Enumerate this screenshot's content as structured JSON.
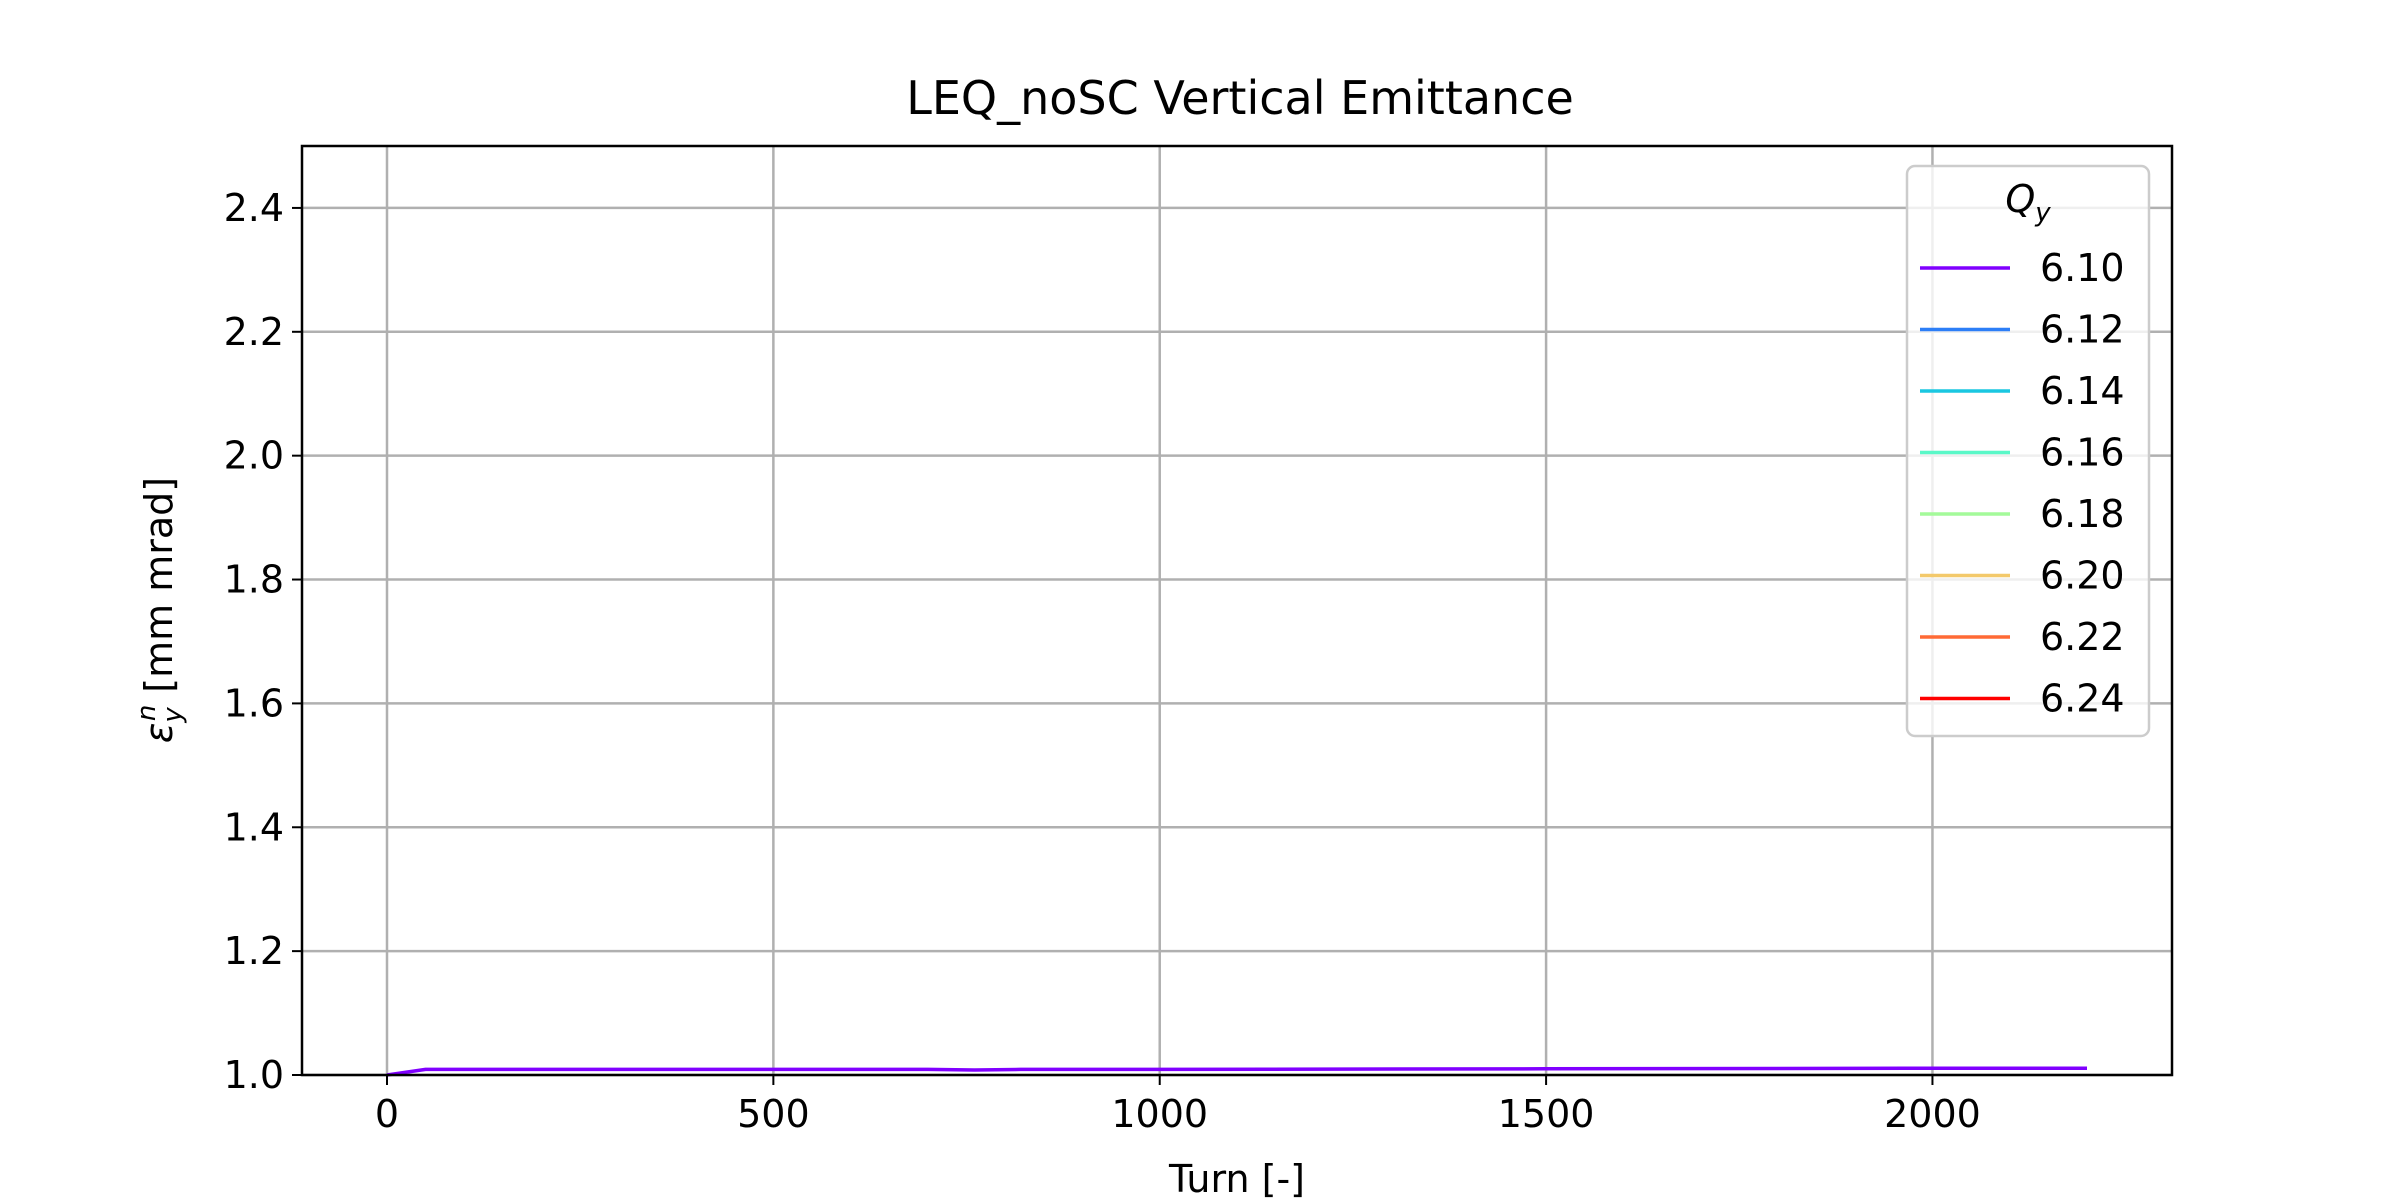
{
  "chart_data": {
    "type": "line",
    "title": "LEQ_noSC Vertical Emittance",
    "xlabel": "Turn [-]",
    "ylabel": {
      "symbol": "ε",
      "superscript": "n",
      "subscript": "y",
      "unit": "[mm mrad]"
    },
    "xlim": [
      -110,
      2310
    ],
    "ylim": [
      1.0,
      2.5
    ],
    "xticks": [
      0,
      500,
      1000,
      1500,
      2000
    ],
    "xtick_labels": [
      "0",
      "500",
      "1000",
      "1500",
      "2000"
    ],
    "yticks": [
      1.0,
      1.2,
      1.4,
      1.6,
      1.8,
      2.0,
      2.2,
      2.4
    ],
    "ytick_labels": [
      "1.0",
      "1.2",
      "1.4",
      "1.6",
      "1.8",
      "2.0",
      "2.2",
      "2.4"
    ],
    "grid": true,
    "legend": {
      "placement": "upper right",
      "title": {
        "symbol": "Q",
        "subscript": "y"
      }
    },
    "series": [
      {
        "name": "6.10",
        "color": "#8000ff",
        "x": [
          0,
          50,
          100,
          300,
          500,
          700,
          760,
          820,
          1000,
          1500,
          2000,
          2200
        ],
        "y": [
          1.0,
          1.009,
          1.009,
          1.009,
          1.009,
          1.009,
          1.008,
          1.009,
          1.009,
          1.01,
          1.011,
          1.011
        ]
      },
      {
        "name": "6.12",
        "color": "#2c7ef7",
        "x": [],
        "y": []
      },
      {
        "name": "6.14",
        "color": "#1ac7e1",
        "x": [],
        "y": []
      },
      {
        "name": "6.16",
        "color": "#5af8c8",
        "x": [],
        "y": []
      },
      {
        "name": "6.18",
        "color": "#a4fa9a",
        "x": [],
        "y": []
      },
      {
        "name": "6.20",
        "color": "#f3c96b",
        "x": [],
        "y": []
      },
      {
        "name": "6.22",
        "color": "#ff6a35",
        "x": [],
        "y": []
      },
      {
        "name": "6.24",
        "color": "#ff0000",
        "x": [],
        "y": []
      }
    ]
  }
}
